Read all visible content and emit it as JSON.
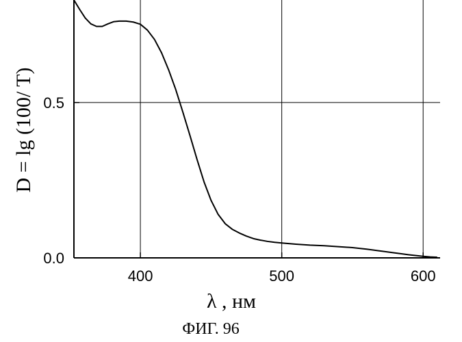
{
  "chart_data": {
    "type": "line",
    "caption": "ФИГ. 96",
    "xlabel": "λ , нм",
    "ylabel": "D = lg (100/ T)",
    "xlim": [
      353,
      612
    ],
    "ylim": [
      0.0,
      0.83
    ],
    "grid": true,
    "x_ticks": [
      {
        "value": 400,
        "label": "400"
      },
      {
        "value": 500,
        "label": "500"
      },
      {
        "value": 600,
        "label": "600"
      }
    ],
    "y_ticks": [
      {
        "value": 0.0,
        "label": "0.0"
      },
      {
        "value": 0.5,
        "label": "0.5"
      }
    ],
    "series": [
      {
        "color": "#000000",
        "x": [
          353,
          357,
          361,
          365,
          369,
          373,
          377,
          381,
          385,
          390,
          395,
          400,
          405,
          410,
          415,
          420,
          425,
          430,
          435,
          440,
          445,
          450,
          455,
          460,
          465,
          470,
          475,
          480,
          485,
          490,
          495,
          500,
          510,
          520,
          530,
          540,
          550,
          560,
          570,
          580,
          590,
          600,
          605,
          610
        ],
        "y": [
          0.83,
          0.8,
          0.772,
          0.753,
          0.745,
          0.745,
          0.753,
          0.76,
          0.762,
          0.762,
          0.759,
          0.752,
          0.733,
          0.703,
          0.66,
          0.605,
          0.542,
          0.47,
          0.395,
          0.318,
          0.245,
          0.185,
          0.14,
          0.11,
          0.092,
          0.08,
          0.07,
          0.062,
          0.057,
          0.053,
          0.05,
          0.048,
          0.044,
          0.041,
          0.039,
          0.036,
          0.033,
          0.028,
          0.022,
          0.016,
          0.01,
          0.005,
          0.003,
          0.002
        ]
      }
    ]
  }
}
